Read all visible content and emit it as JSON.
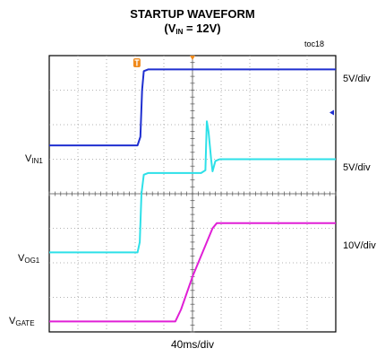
{
  "title_line1": "STARTUP WAVEFORM",
  "title_line2_prefix": "(V",
  "title_line2_sub": "IN",
  "title_line2_suffix": " = 12V)",
  "toc": "toc18",
  "x_scale": "40ms/div",
  "channel_labels": [
    {
      "main": "V",
      "sub": "IN1"
    },
    {
      "main": "V",
      "sub": "OG1"
    },
    {
      "main": "V",
      "sub": "GATE"
    }
  ],
  "scale_labels": [
    "5V/div",
    "5V/div",
    "10V/div"
  ],
  "colors": {
    "vin1": "#1f2fd0",
    "vog1": "#2de0e8",
    "vgate": "#e01fd6",
    "trigger": "#f08a1c"
  },
  "chart_data": {
    "type": "line",
    "title": "STARTUP WAVEFORM (VIN = 12V)",
    "x_unit_per_div": "40ms/div",
    "x_divisions": 10,
    "y_divisions": 8,
    "grid": true,
    "x_range_div": [
      0,
      10
    ],
    "series": [
      {
        "name": "VIN1",
        "volts_per_div": "5V/div",
        "color": "#1f2fd0",
        "points_div": [
          [
            0,
            5.4
          ],
          [
            3.08,
            5.4
          ],
          [
            3.18,
            5.65
          ],
          [
            3.24,
            7.0
          ],
          [
            3.3,
            7.55
          ],
          [
            3.45,
            7.6
          ],
          [
            10,
            7.6
          ]
        ]
      },
      {
        "name": "VOG1",
        "volts_per_div": "5V/div",
        "color": "#2de0e8",
        "points_div": [
          [
            0,
            2.3
          ],
          [
            3.08,
            2.3
          ],
          [
            3.16,
            2.6
          ],
          [
            3.22,
            4.0
          ],
          [
            3.3,
            4.55
          ],
          [
            3.45,
            4.6
          ],
          [
            5.3,
            4.6
          ],
          [
            5.45,
            4.68
          ],
          [
            5.5,
            6.1
          ],
          [
            5.56,
            5.8
          ],
          [
            5.65,
            5.0
          ],
          [
            5.7,
            4.65
          ],
          [
            5.8,
            4.95
          ],
          [
            5.95,
            5.0
          ],
          [
            10,
            5.0
          ]
        ]
      },
      {
        "name": "VGATE",
        "volts_per_div": "10V/div",
        "color": "#e01fd6",
        "points_div": [
          [
            0,
            0.3
          ],
          [
            4.4,
            0.3
          ],
          [
            4.6,
            0.65
          ],
          [
            5.0,
            1.6
          ],
          [
            5.5,
            2.6
          ],
          [
            5.7,
            3.0
          ],
          [
            5.85,
            3.15
          ],
          [
            10,
            3.15
          ]
        ]
      }
    ]
  }
}
